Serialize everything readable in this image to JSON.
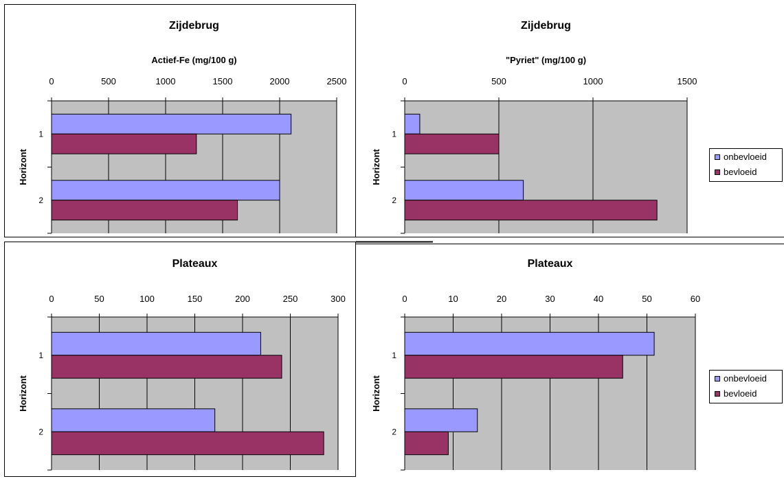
{
  "legend": {
    "onbevloeid": "onbevloeid",
    "bevloeid": "bevloeid"
  },
  "colors": {
    "onbevloeid": "#9999FF",
    "bevloeid": "#993366",
    "plot_bg": "#C0C0C0"
  },
  "chart_data": [
    {
      "type": "bar",
      "title": "Zijdebrug",
      "xlabel": "Actief-Fe (mg/100 g)",
      "ylabel": "Horizont",
      "categories": [
        "1",
        "2"
      ],
      "xlim": [
        0,
        2500
      ],
      "ticks": [
        0,
        500,
        1000,
        1500,
        2000,
        2500
      ],
      "series": [
        {
          "name": "onbevloeid",
          "values": [
            2100,
            2000
          ]
        },
        {
          "name": "bevloeid",
          "values": [
            1270,
            1630
          ]
        }
      ]
    },
    {
      "type": "bar",
      "title": "Zijdebrug",
      "xlabel": "\"Pyriet\" (mg/100 g)",
      "ylabel": "Horizont",
      "categories": [
        "1",
        "2"
      ],
      "xlim": [
        0,
        1500
      ],
      "ticks": [
        0,
        500,
        1000,
        1500
      ],
      "series": [
        {
          "name": "onbevloeid",
          "values": [
            80,
            630
          ]
        },
        {
          "name": "bevloeid",
          "values": [
            500,
            1340
          ]
        }
      ]
    },
    {
      "type": "bar",
      "title": "Plateaux",
      "xlabel": "",
      "ylabel": "Horizont",
      "categories": [
        "1",
        "2"
      ],
      "xlim": [
        0,
        300
      ],
      "ticks": [
        0,
        50,
        100,
        150,
        200,
        250,
        300
      ],
      "series": [
        {
          "name": "onbevloeid",
          "values": [
            219,
            171
          ]
        },
        {
          "name": "bevloeid",
          "values": [
            241,
            285
          ]
        }
      ]
    },
    {
      "type": "bar",
      "title": "Plateaux",
      "xlabel": "",
      "ylabel": "Horizont",
      "categories": [
        "1",
        "2"
      ],
      "xlim": [
        0,
        60
      ],
      "ticks": [
        0,
        10,
        20,
        30,
        40,
        50,
        60
      ],
      "series": [
        {
          "name": "onbevloeid",
          "values": [
            51.5,
            15
          ]
        },
        {
          "name": "bevloeid",
          "values": [
            45,
            9
          ]
        }
      ]
    }
  ]
}
